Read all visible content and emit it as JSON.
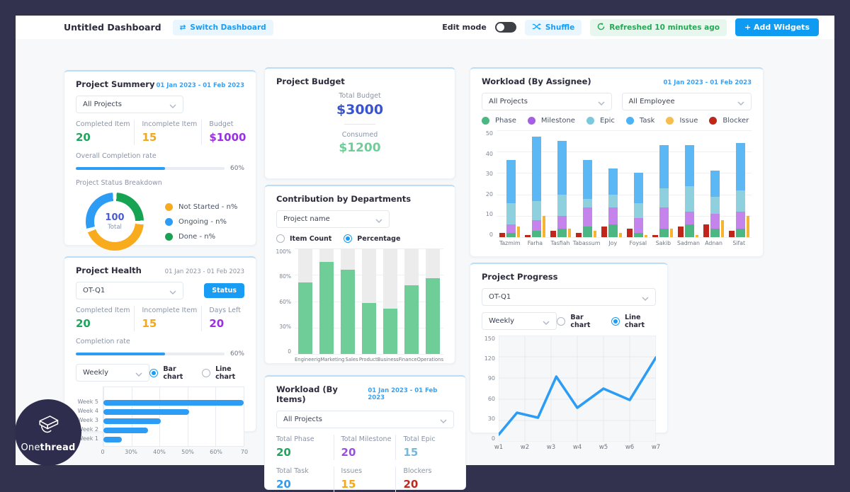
{
  "topbar": {
    "title": "Untitled Dashboard",
    "switch_label": "Switch Dashboard",
    "edit_mode_label": "Edit mode",
    "shuffle_label": "Shuffle",
    "refreshed_label": "Refreshed 10 minutes ago",
    "add_widgets_label": "+ Add Widgets"
  },
  "logo": {
    "name": "Onethread",
    "text_regular": "One",
    "text_bold": "thread"
  },
  "project_summary": {
    "title": "Project Summery",
    "date_range": "01 Jan 2023 - 01 Feb 2023",
    "project_filter": "All Projects",
    "stats": [
      {
        "label": "Completed Item",
        "value": "20",
        "color": "#21A45D"
      },
      {
        "label": "Incomplete Item",
        "value": "15",
        "color": "#F2A818"
      },
      {
        "label": "Budget",
        "value": "$1000",
        "color": "#9B2FE3"
      }
    ],
    "completion": {
      "label": "Overall Completion rate",
      "percent": 60,
      "text": "60%"
    },
    "breakdown": {
      "label": "Project Status Breakdown",
      "center_value": "100",
      "center_label": "Total",
      "segments": [
        {
          "label": "Not Started - n%",
          "color": "#F9AB1E",
          "start": 96,
          "end": 248
        },
        {
          "label": "Ongoing - n%",
          "color": "#2D9CF4",
          "start": 256,
          "end": 356
        },
        {
          "label": "Done - n%",
          "color": "#17A452",
          "start": 4,
          "end": 88
        }
      ],
      "legend": [
        {
          "label": "Not Started - n%",
          "color": "#F9AB1E"
        },
        {
          "label": "Ongoing - n%",
          "color": "#2D9CF4"
        },
        {
          "label": "Done - n%",
          "color": "#17A452"
        }
      ]
    }
  },
  "project_health": {
    "title": "Project Health",
    "date_range": "01 Jan 2023 - 01 Feb 2023",
    "project_filter": "OT-Q1",
    "status_button": "Status",
    "stats": [
      {
        "label": "Completed Item",
        "value": "20",
        "color": "#21A45D"
      },
      {
        "label": "Incomplete Item",
        "value": "15",
        "color": "#F2A818"
      },
      {
        "label": "Days Left",
        "value": "20",
        "color": "#9B2FE3"
      }
    ],
    "completion": {
      "label": "Completion rate",
      "percent": 60,
      "text": "60%"
    },
    "period_filter": "Weekly",
    "radio_bar": "Bar chart",
    "radio_line": "Line chart",
    "chart": {
      "type": "bar-horizontal",
      "categories": [
        "Week 5",
        "Week 4",
        "Week 3",
        "Week 2",
        "Week 1"
      ],
      "values_pct": [
        100,
        61,
        41,
        32,
        13
      ],
      "x_ticks": [
        "0",
        "30%",
        "40%",
        "50%",
        "60%",
        "70"
      ],
      "bar_color": "#2D9CF4"
    }
  },
  "project_budget": {
    "title": "Project Budget",
    "total_label": "Total Budget",
    "total_value": "$3000",
    "total_color": "#3A53CE",
    "consumed_label": "Consumed",
    "consumed_value": "$1200",
    "consumed_color": "#6FCE97"
  },
  "contribution": {
    "title": "Contribution by Departments",
    "project_filter": "Project name",
    "radio_item_count": "Item Count",
    "radio_percentage": "Percentage",
    "chart": {
      "type": "bar",
      "categories": [
        "Engineerig",
        "Marketing",
        "Sales",
        "Product",
        "Business",
        "Finance",
        "Operations"
      ],
      "values": [
        68,
        87,
        80,
        48,
        43,
        65,
        72
      ],
      "y_ticks": [
        "100%",
        "80%",
        "60%",
        "30%",
        "0"
      ],
      "bar_color": "#6FCE97",
      "track_color": "#ECECEC"
    }
  },
  "workload_items": {
    "title": "Workload (By Items)",
    "date_range": "01 Jan 2023 - 01 Feb 2023",
    "project_filter": "All Projects",
    "stats": [
      {
        "label": "Total Phase",
        "value": "20",
        "color": "#21A45D"
      },
      {
        "label": "Total Milestone",
        "value": "20",
        "color": "#9B4FE0"
      },
      {
        "label": "Total Epic",
        "value": "15",
        "color": "#74B9DC"
      },
      {
        "label": "Total Task",
        "value": "20",
        "color": "#2D9CF4"
      },
      {
        "label": "Issues",
        "value": "15",
        "color": "#F2A818"
      },
      {
        "label": "Blockers",
        "value": "20",
        "color": "#C5271D"
      }
    ]
  },
  "workload_assignee": {
    "title": "Workload (By Assignee)",
    "date_range": "01 Jan 2023 - 01 Feb 2023",
    "project_filter": "All Projects",
    "employee_filter": "All Employee",
    "legend": [
      {
        "label": "Phase",
        "color": "#4CB782"
      },
      {
        "label": "Milestone",
        "color": "#A55EE4"
      },
      {
        "label": "Epic",
        "color": "#7CC8DC"
      },
      {
        "label": "Task",
        "color": "#4DB3F4"
      },
      {
        "label": "Issue",
        "color": "#F6BE4F"
      },
      {
        "label": "Blocker",
        "color": "#C1261B"
      }
    ],
    "chart": {
      "type": "stacked-bar",
      "y_ticks": [
        0,
        10,
        20,
        30,
        40,
        50
      ],
      "y_max": 50,
      "categories": [
        "Tazmim",
        "Farha",
        "Tasfiah",
        "Tabassum",
        "Joy",
        "Foysal",
        "Sakib",
        "Sadman",
        "Adnan",
        "Sifat"
      ],
      "blocker": [
        2,
        1,
        3,
        2,
        5,
        4,
        1,
        5,
        6,
        3
      ],
      "series": [
        {
          "name": "Phase",
          "color": "#4CB782",
          "values": [
            2,
            3,
            4,
            5,
            6,
            2,
            4,
            6,
            4,
            4
          ]
        },
        {
          "name": "Milestone",
          "color": "#C583EC",
          "values": [
            4,
            5,
            6,
            9,
            8,
            7,
            10,
            6,
            7,
            8
          ]
        },
        {
          "name": "Epic",
          "color": "#8FD0DE",
          "values": [
            10,
            9,
            10,
            4,
            6,
            7,
            9,
            12,
            8,
            10
          ]
        },
        {
          "name": "Task",
          "color": "#5BB8F5",
          "values": [
            20,
            30,
            25,
            18,
            12,
            14,
            20,
            19,
            12,
            22
          ]
        }
      ],
      "issue": [
        5,
        10,
        4,
        3,
        2,
        1,
        4,
        1,
        8,
        10
      ]
    }
  },
  "project_progress": {
    "title": "Project Progress",
    "project_filter": "OT-Q1",
    "period_filter": "Weekly",
    "radio_bar": "Bar chart",
    "radio_line": "Line chart",
    "chart": {
      "type": "line",
      "x_labels": [
        "w1",
        "w2",
        "w3",
        "w4",
        "w5",
        "w6",
        "w7"
      ],
      "points_x": [
        1,
        1.7,
        2.5,
        3.2,
        4,
        5,
        6,
        7
      ],
      "points_y": [
        10,
        41,
        34,
        92,
        48,
        75,
        59,
        119
      ],
      "y_ticks": [
        0,
        30,
        60,
        90,
        120,
        150
      ],
      "y_max": 150,
      "line_color": "#2D9CF4"
    }
  }
}
